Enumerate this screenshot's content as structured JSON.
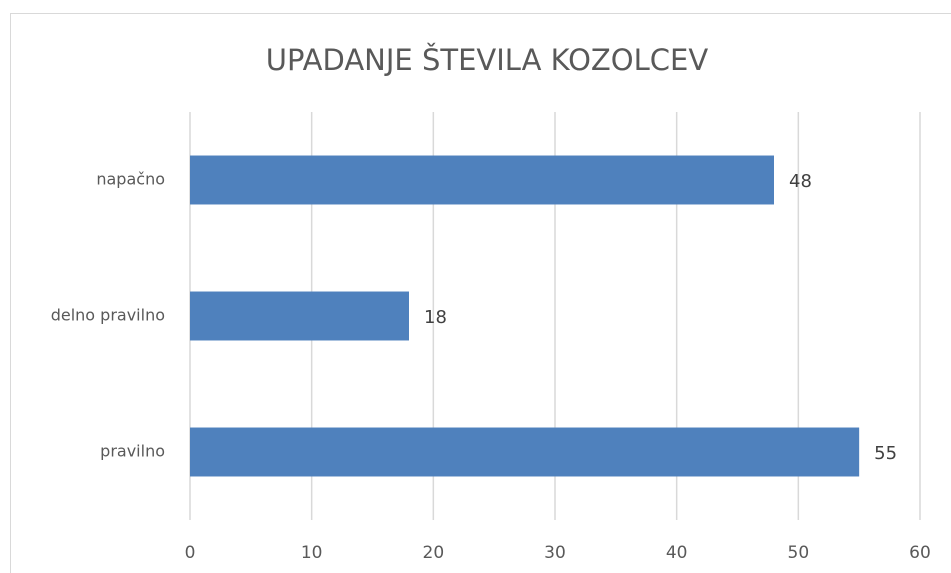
{
  "chart_data": {
    "type": "bar",
    "title": "UPADANJE ŠTEVILA KOZOLCEV",
    "categories": [
      "napačno",
      "delno pravilno",
      "pravilno"
    ],
    "values": [
      48,
      18,
      55
    ],
    "color": "#4f81bd",
    "xlim": [
      0,
      60
    ],
    "xticks": [
      0,
      10,
      20,
      30,
      40,
      50,
      60
    ],
    "grid": true
  }
}
